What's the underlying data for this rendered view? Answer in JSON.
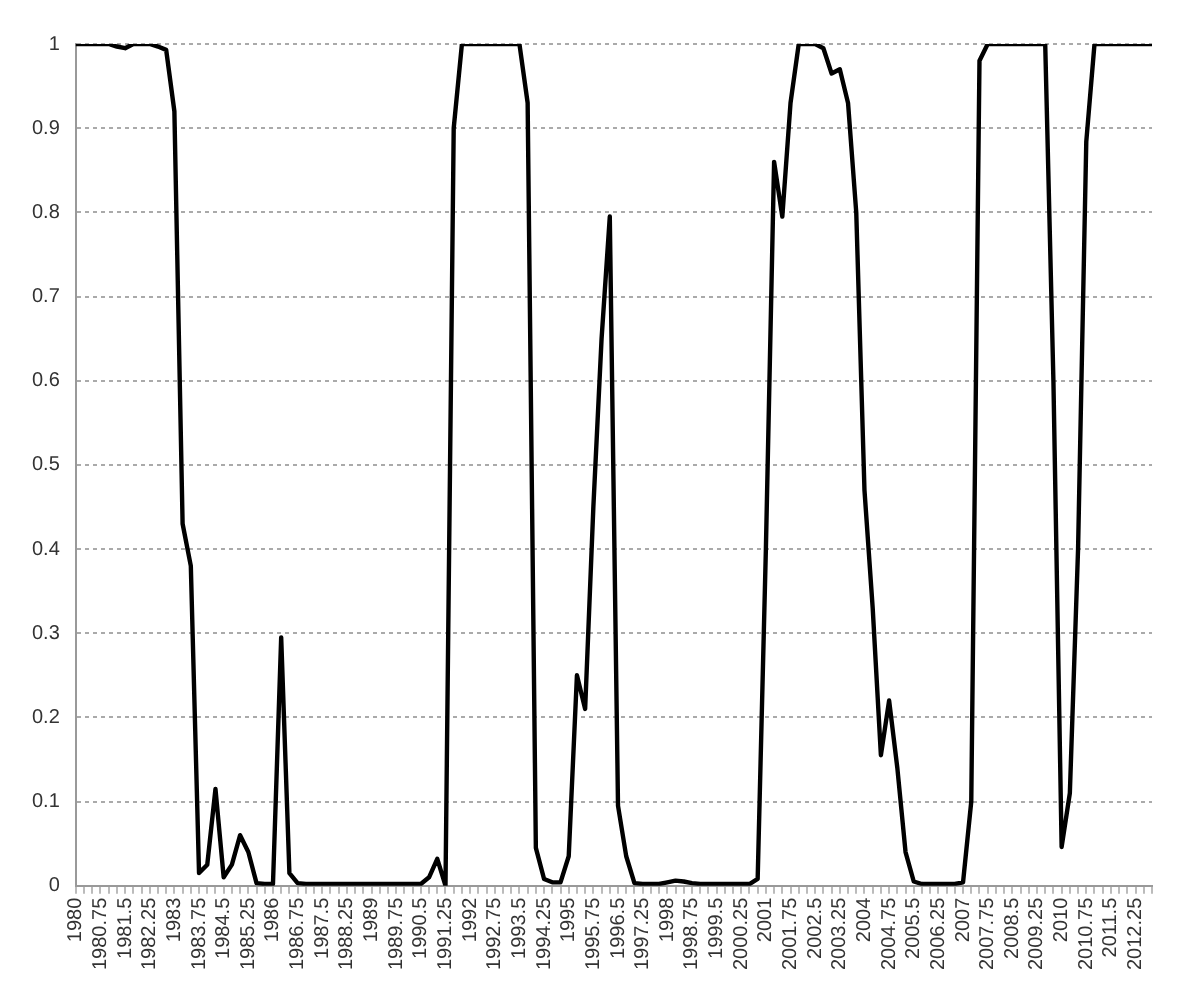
{
  "chart_data": {
    "type": "line",
    "categories": [
      "1980",
      null,
      null,
      "1980.75",
      null,
      null,
      "1981.5",
      null,
      null,
      "1982.25",
      null,
      null,
      "1983",
      null,
      null,
      "1983.75",
      null,
      null,
      "1984.5",
      null,
      null,
      "1985.25",
      null,
      null,
      "1986",
      null,
      null,
      "1986.75",
      null,
      null,
      "1987.5",
      null,
      null,
      "1988.25",
      null,
      null,
      "1989",
      null,
      null,
      "1989.75",
      null,
      null,
      "1990.5",
      null,
      null,
      "1991.25",
      null,
      null,
      "1992",
      null,
      null,
      "1992.75",
      null,
      null,
      "1993.5",
      null,
      null,
      "1994.25",
      null,
      null,
      "1995",
      null,
      null,
      "1995.75",
      null,
      null,
      "1996.5",
      null,
      null,
      "1997.25",
      null,
      null,
      "1998",
      null,
      null,
      "1998.75",
      null,
      null,
      "1999.5",
      null,
      null,
      "2000.25",
      null,
      null,
      "2001",
      null,
      null,
      "2001.75",
      null,
      null,
      "2002.5",
      null,
      null,
      "2003.25",
      null,
      null,
      "2004",
      null,
      null,
      "2004.75",
      null,
      null,
      "2005.5",
      null,
      null,
      "2006.25",
      null,
      null,
      "2007",
      null,
      null,
      "2007.75",
      null,
      null,
      "2008.5",
      null,
      null,
      "2009.25",
      null,
      null,
      "2010",
      null,
      null,
      "2010.75",
      null,
      null,
      "2011.5",
      null,
      null,
      "2012.25",
      null,
      null
    ],
    "series": [
      {
        "color": "#000000",
        "values": [
          1,
          1,
          1,
          1,
          1,
          0.997,
          0.995,
          1,
          1,
          1,
          0.997,
          0.993,
          0.92,
          0.43,
          0.38,
          0.015,
          0.025,
          0.115,
          0.01,
          0.025,
          0.06,
          0.04,
          0.003,
          0.002,
          0.002,
          0.295,
          0.015,
          0.003,
          0.002,
          0.002,
          0.002,
          0.002,
          0.002,
          0.002,
          0.002,
          0.002,
          0.002,
          0.002,
          0.002,
          0.002,
          0.002,
          0.002,
          0.002,
          0.01,
          0.032,
          0,
          0.9,
          1,
          1,
          1,
          1,
          1,
          1,
          1,
          1,
          0.93,
          0.045,
          0.008,
          0.004,
          0.004,
          0.035,
          0.25,
          0.21,
          0.45,
          0.65,
          0.795,
          0.095,
          0.035,
          0.003,
          0.002,
          0.002,
          0.002,
          0.004,
          0.006,
          0.005,
          0.003,
          0.002,
          0.002,
          0.002,
          0.002,
          0.002,
          0.002,
          0.002,
          0.008,
          0.4,
          0.86,
          0.795,
          0.93,
          1,
          1,
          1,
          0.995,
          0.965,
          0.97,
          0.93,
          0.8,
          0.47,
          0.33,
          0.155,
          0.22,
          0.14,
          0.04,
          0.005,
          0.002,
          0.002,
          0.002,
          0.002,
          0.002,
          0.004,
          0.1,
          0.98,
          1,
          1,
          1,
          1,
          1,
          1,
          1,
          1,
          0.6,
          0.046,
          0.11,
          0.4,
          0.884,
          1,
          1,
          1,
          1,
          1,
          1,
          1,
          1
        ]
      }
    ],
    "ylim": [
      0,
      1
    ],
    "yticks": [
      0,
      0.1,
      0.2,
      0.3,
      0.4,
      0.5,
      0.6,
      0.7,
      0.8,
      0.9,
      1
    ],
    "grid": "y",
    "legend": false,
    "marker": "none",
    "line_style": "solid"
  }
}
